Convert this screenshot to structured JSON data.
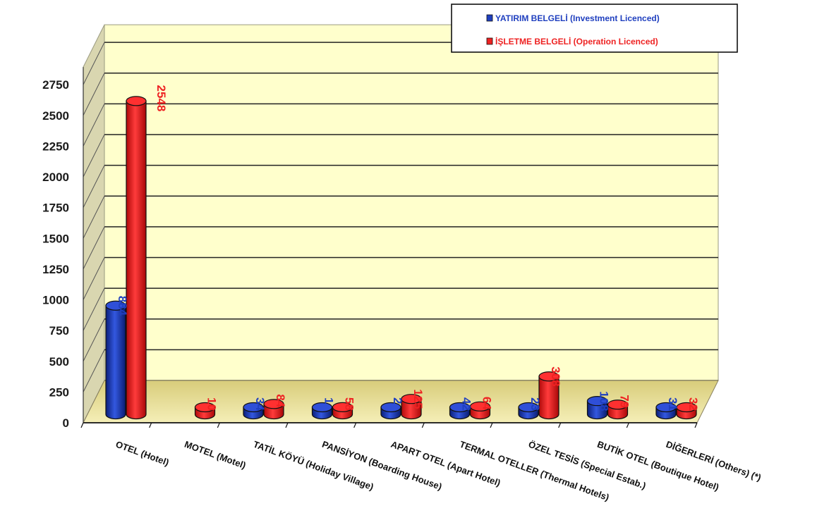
{
  "chart_data": {
    "type": "bar",
    "title": "",
    "xlabel": "",
    "ylabel": "",
    "ylim": [
      0,
      2750
    ],
    "yticks": [
      0,
      250,
      500,
      750,
      1000,
      1250,
      1500,
      1750,
      2000,
      2250,
      2500,
      2750
    ],
    "categories": [
      "OTEL (Hotel)",
      "MOTEL (Motel)",
      "TATİL KÖYÜ (Holiday Village)",
      "PANSİYON (Boarding House)",
      "APART OTEL (Apart Hotel)",
      "TERMAL OTELLER (Thermal Hotels)",
      "ÖZEL TESİS (Special Estab.)",
      "BUTİK OTEL (Boutique Hotel)",
      "DİĞERLERİ (Others) (*)"
    ],
    "series": [
      {
        "name": "YATIRIM BELGELİ (Investment Licenced)",
        "color": "#1f3fbf",
        "values": [
          884,
          null,
          34,
          1,
          2,
          42,
          23,
          108,
          31
        ],
        "labels": [
          "884",
          "",
          "34",
          "1",
          "2",
          "42",
          "23",
          "108",
          "31"
        ]
      },
      {
        "name": "İŞLETME BELGELİ (Operation Licenced)",
        "color": "#ee2222",
        "values": [
          2548,
          10,
          84,
          58,
          125,
          64,
          308,
          79,
          32
        ],
        "labels": [
          "2548",
          "10",
          "84",
          "58",
          "125",
          "64",
          "308",
          "79",
          "32"
        ]
      }
    ],
    "grid": true,
    "legend_position": "top-right"
  }
}
